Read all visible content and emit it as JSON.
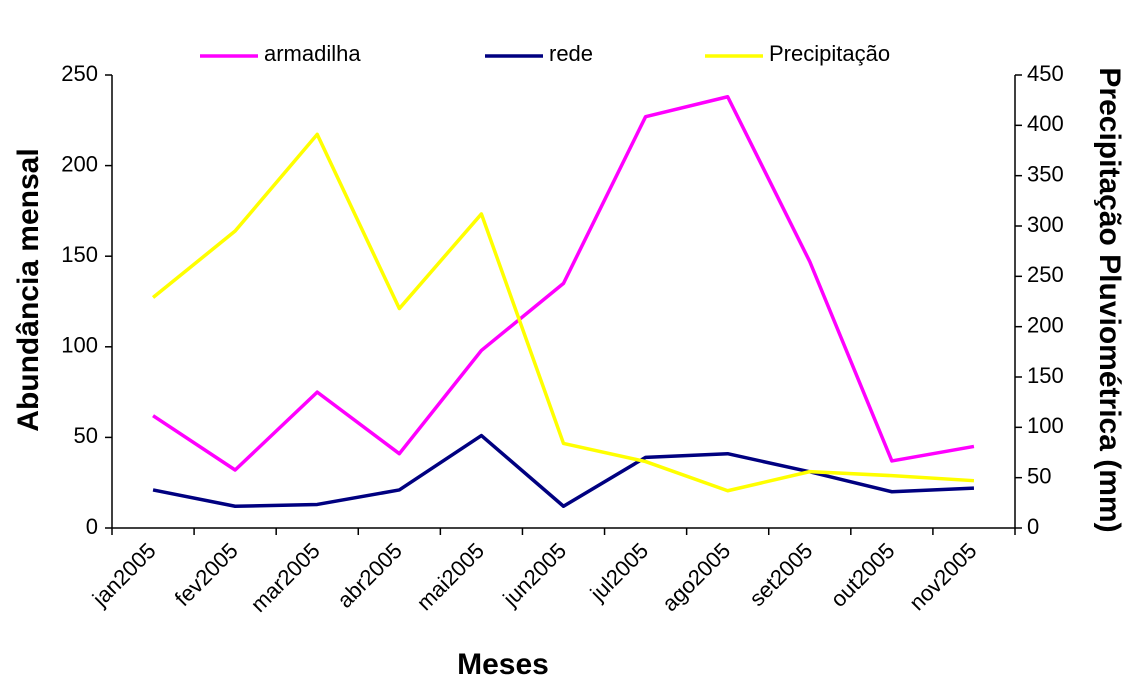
{
  "chart_data": {
    "type": "line",
    "x_label": "Meses",
    "y_label": "Abundância mensal",
    "y2_label": "Precipitação Pluviométrica (mm)",
    "categories": [
      "jan2005",
      "fev2005",
      "mar2005",
      "abr2005",
      "mai2005",
      "jun2005",
      "jul2005",
      "ago2005",
      "set2005",
      "out2005",
      "nov2005"
    ],
    "series": [
      {
        "name": "armadilha",
        "color": "#ff00ff",
        "values": [
          62,
          32,
          75,
          41,
          98,
          135,
          227,
          238,
          147,
          37,
          45
        ]
      },
      {
        "name": "rede",
        "color": "#000080",
        "values": [
          21,
          12,
          13,
          21,
          51,
          12,
          39,
          41,
          31,
          20,
          22
        ]
      },
      {
        "name": "Precipitação",
        "color": "#ffff00",
        "axis": "y2",
        "values": [
          229,
          295,
          391,
          218,
          312,
          84,
          66,
          37,
          56,
          52,
          47
        ]
      }
    ],
    "ylim": [
      0,
      250
    ],
    "yticks": [
      0,
      50,
      100,
      150,
      200,
      250
    ],
    "y2lim": [
      0,
      450
    ],
    "y2ticks": [
      0,
      50,
      100,
      150,
      200,
      250,
      300,
      350,
      400,
      450
    ],
    "grid": false,
    "legend": "top"
  }
}
